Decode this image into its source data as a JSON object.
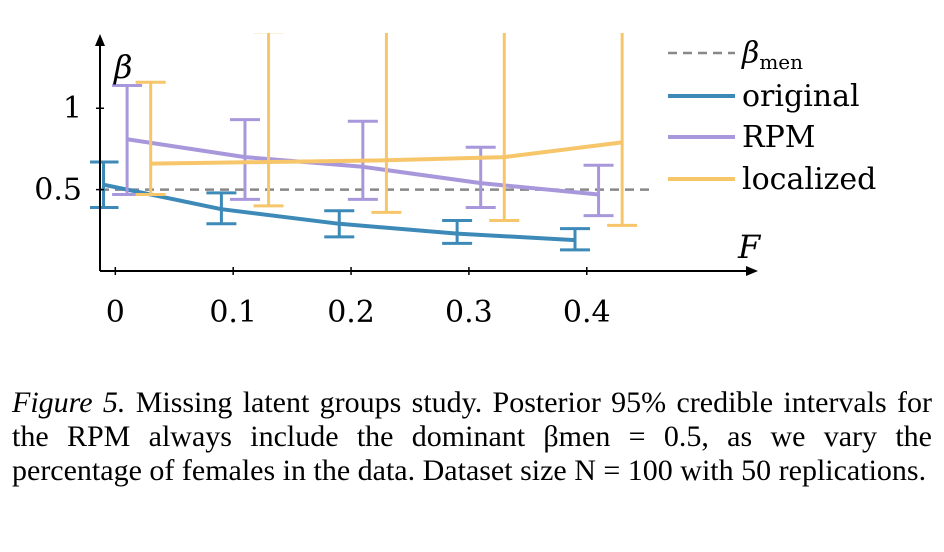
{
  "chart_data": {
    "type": "line",
    "xlabel": "F",
    "ylabel": "β",
    "x_ticks": [
      "0",
      "0.1",
      "0.2",
      "0.3",
      "0.4"
    ],
    "y_ticks": [
      "0.5",
      "1"
    ],
    "xlim": [
      -0.013,
      0.53
    ],
    "ylim": [
      0,
      1.45
    ],
    "grid": false,
    "legend_position": "right",
    "reference_line": {
      "name": "β",
      "name_subscript": "men",
      "y": 0.5,
      "color": "#888888",
      "style": "dashed"
    },
    "series": [
      {
        "name": "original",
        "color": "#3d8ab8",
        "x": [
          -0.01,
          0.09,
          0.19,
          0.29,
          0.39
        ],
        "y": [
          0.53,
          0.38,
          0.29,
          0.23,
          0.19
        ],
        "ci_low": [
          0.39,
          0.29,
          0.21,
          0.17,
          0.13
        ],
        "ci_high": [
          0.67,
          0.48,
          0.37,
          0.31,
          0.26
        ]
      },
      {
        "name": "RPM",
        "color": "#a898db",
        "x": [
          0.01,
          0.11,
          0.21,
          0.31,
          0.41
        ],
        "y": [
          0.81,
          0.7,
          0.64,
          0.54,
          0.47
        ],
        "ci_low": [
          0.47,
          0.44,
          0.44,
          0.39,
          0.34
        ],
        "ci_high": [
          1.14,
          0.93,
          0.92,
          0.76,
          0.65
        ]
      },
      {
        "name": "localized",
        "color": "#f7c56a",
        "x": [
          0.03,
          0.13,
          0.23,
          0.33,
          0.43
        ],
        "y": [
          0.66,
          0.67,
          0.68,
          0.7,
          0.79
        ],
        "ci_low": [
          0.47,
          0.4,
          0.36,
          0.31,
          0.28
        ],
        "ci_high": [
          1.16,
          1.47,
          1.6,
          1.6,
          1.6
        ]
      }
    ]
  },
  "caption": {
    "label": "Figure 5.",
    "text": "Missing latent groups study. Posterior 95% credible intervals for the RPM always include the dominant βmen = 0.5, as we vary the percentage of females in the data. Dataset size N = 100 with 50 replications."
  },
  "colors": {
    "axis": "#000000",
    "background": "#ffffff"
  }
}
